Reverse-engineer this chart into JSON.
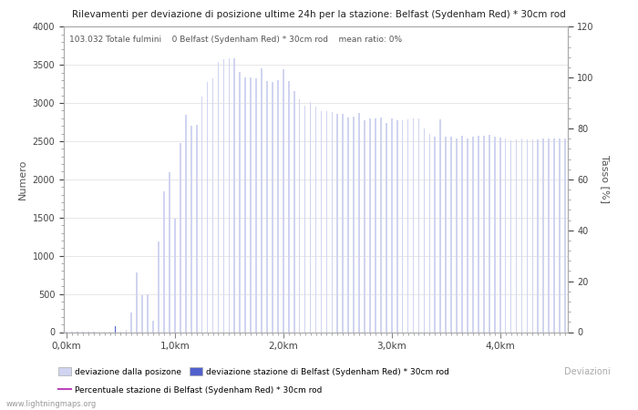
{
  "title": "Rilevamenti per deviazione di posizione ultime 24h per la stazione: Belfast (Sydenham Red) * 30cm rod",
  "subtitle": "103.032 Totale fulmini    0 Belfast (Sydenham Red) * 30cm rod    mean ratio: 0%",
  "ylabel_left": "Numero",
  "ylabel_right": "Tasso [%]",
  "xlabel_bottom": "Deviazioni",
  "watermark": "www.lightningmaps.org",
  "ylim_left": [
    0,
    4000
  ],
  "ylim_right": [
    0,
    120
  ],
  "bg_color": "#ffffff",
  "bar_color_light": "#d0d4f0",
  "bar_color_dark": "#5060cc",
  "line_color": "#bb44bb",
  "grid_color": "#dddddd",
  "x_tick_labels": [
    "0,0km",
    "1,0km",
    "2,0km",
    "3,0km",
    "4,0km"
  ],
  "x_tick_positions": [
    0,
    20,
    40,
    60,
    80
  ],
  "bar_values": [
    5,
    5,
    5,
    5,
    5,
    5,
    5,
    5,
    5,
    80,
    5,
    28,
    260,
    780,
    480,
    490,
    150,
    1190,
    1840,
    2090,
    1490,
    2470,
    2840,
    2700,
    2720,
    3090,
    3280,
    3320,
    3540,
    3570,
    3590,
    3590,
    3410,
    3340,
    3330,
    3320,
    3450,
    3290,
    3280,
    3300,
    3440,
    3290,
    3160,
    3050,
    2970,
    3010,
    2950,
    2890,
    2890,
    2880,
    2860,
    2860,
    2810,
    2820,
    2870,
    2770,
    2800,
    2800,
    2810,
    2740,
    2800,
    2780,
    2780,
    2790,
    2800,
    2800,
    2670,
    2590,
    2560,
    2790,
    2560,
    2560,
    2530,
    2570,
    2540,
    2560,
    2570,
    2570,
    2580,
    2560,
    2550,
    2540,
    2510,
    2520,
    2530,
    2520,
    2520,
    2520,
    2530,
    2530,
    2530,
    2530,
    2530
  ],
  "dark_bar_positions": [
    9
  ],
  "dark_bar_values": [
    80
  ],
  "legend_label_0": "deviazione dalla posizone",
  "legend_label_1": "deviazione stazione di Belfast (Sydenham Red) * 30cm rod",
  "legend_label_2": "Percentuale stazione di Belfast (Sydenham Red) * 30cm rod"
}
